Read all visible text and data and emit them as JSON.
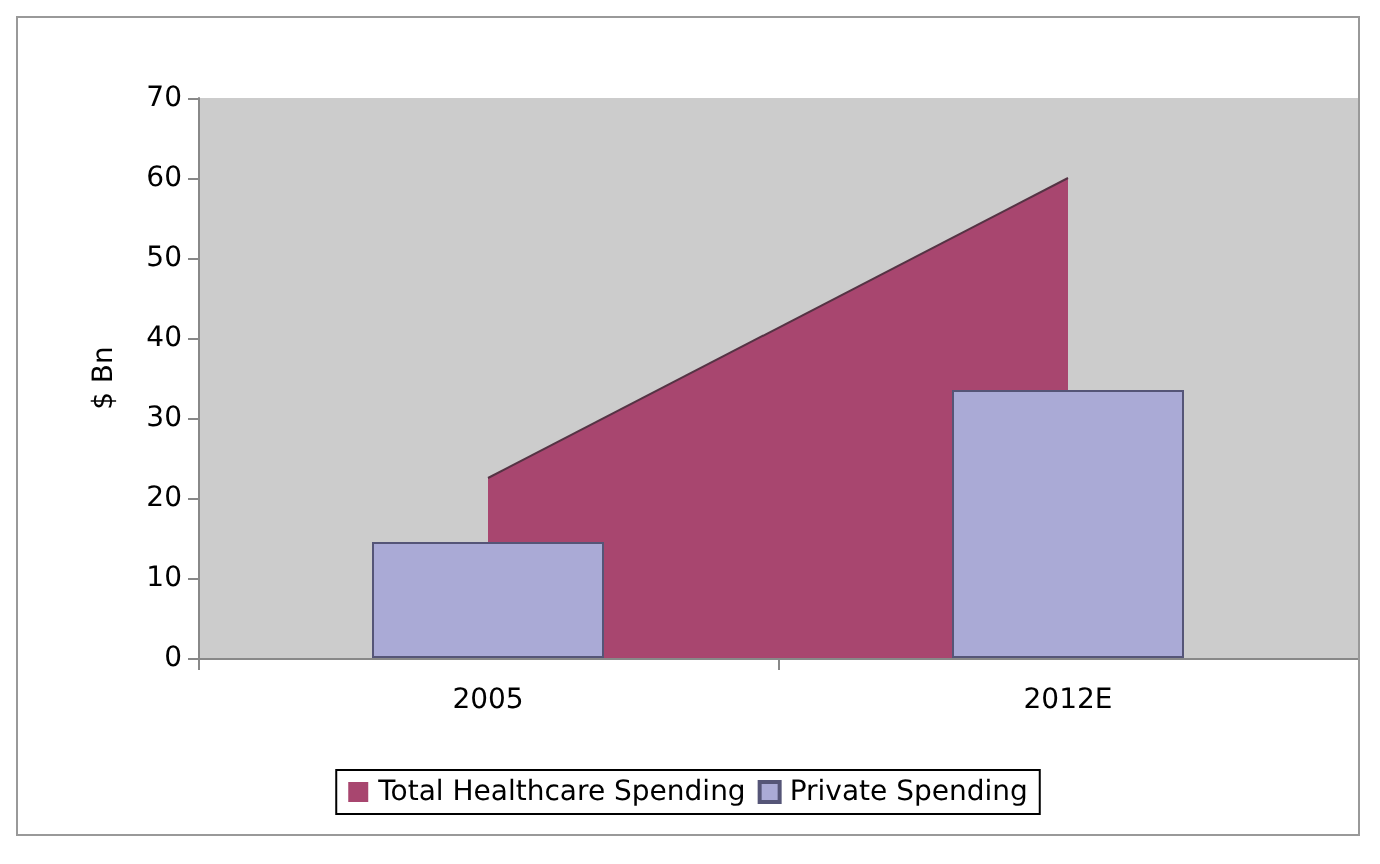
{
  "chart_data": {
    "type": "bar",
    "ylabel": "$ Bn",
    "categories": [
      "2005",
      "2012E"
    ],
    "series": [
      {
        "name": "Total Healthcare Spending",
        "type": "area",
        "color": "#a8466f",
        "values": [
          22.5,
          60
        ]
      },
      {
        "name": "Private Spending",
        "color": "#aaaad6",
        "values": [
          14.5,
          33.5
        ]
      }
    ],
    "ylim": [
      0,
      70
    ],
    "yticks": [
      0,
      10,
      20,
      30,
      40,
      50,
      60,
      70
    ],
    "grid": false,
    "legend": "bottom"
  }
}
